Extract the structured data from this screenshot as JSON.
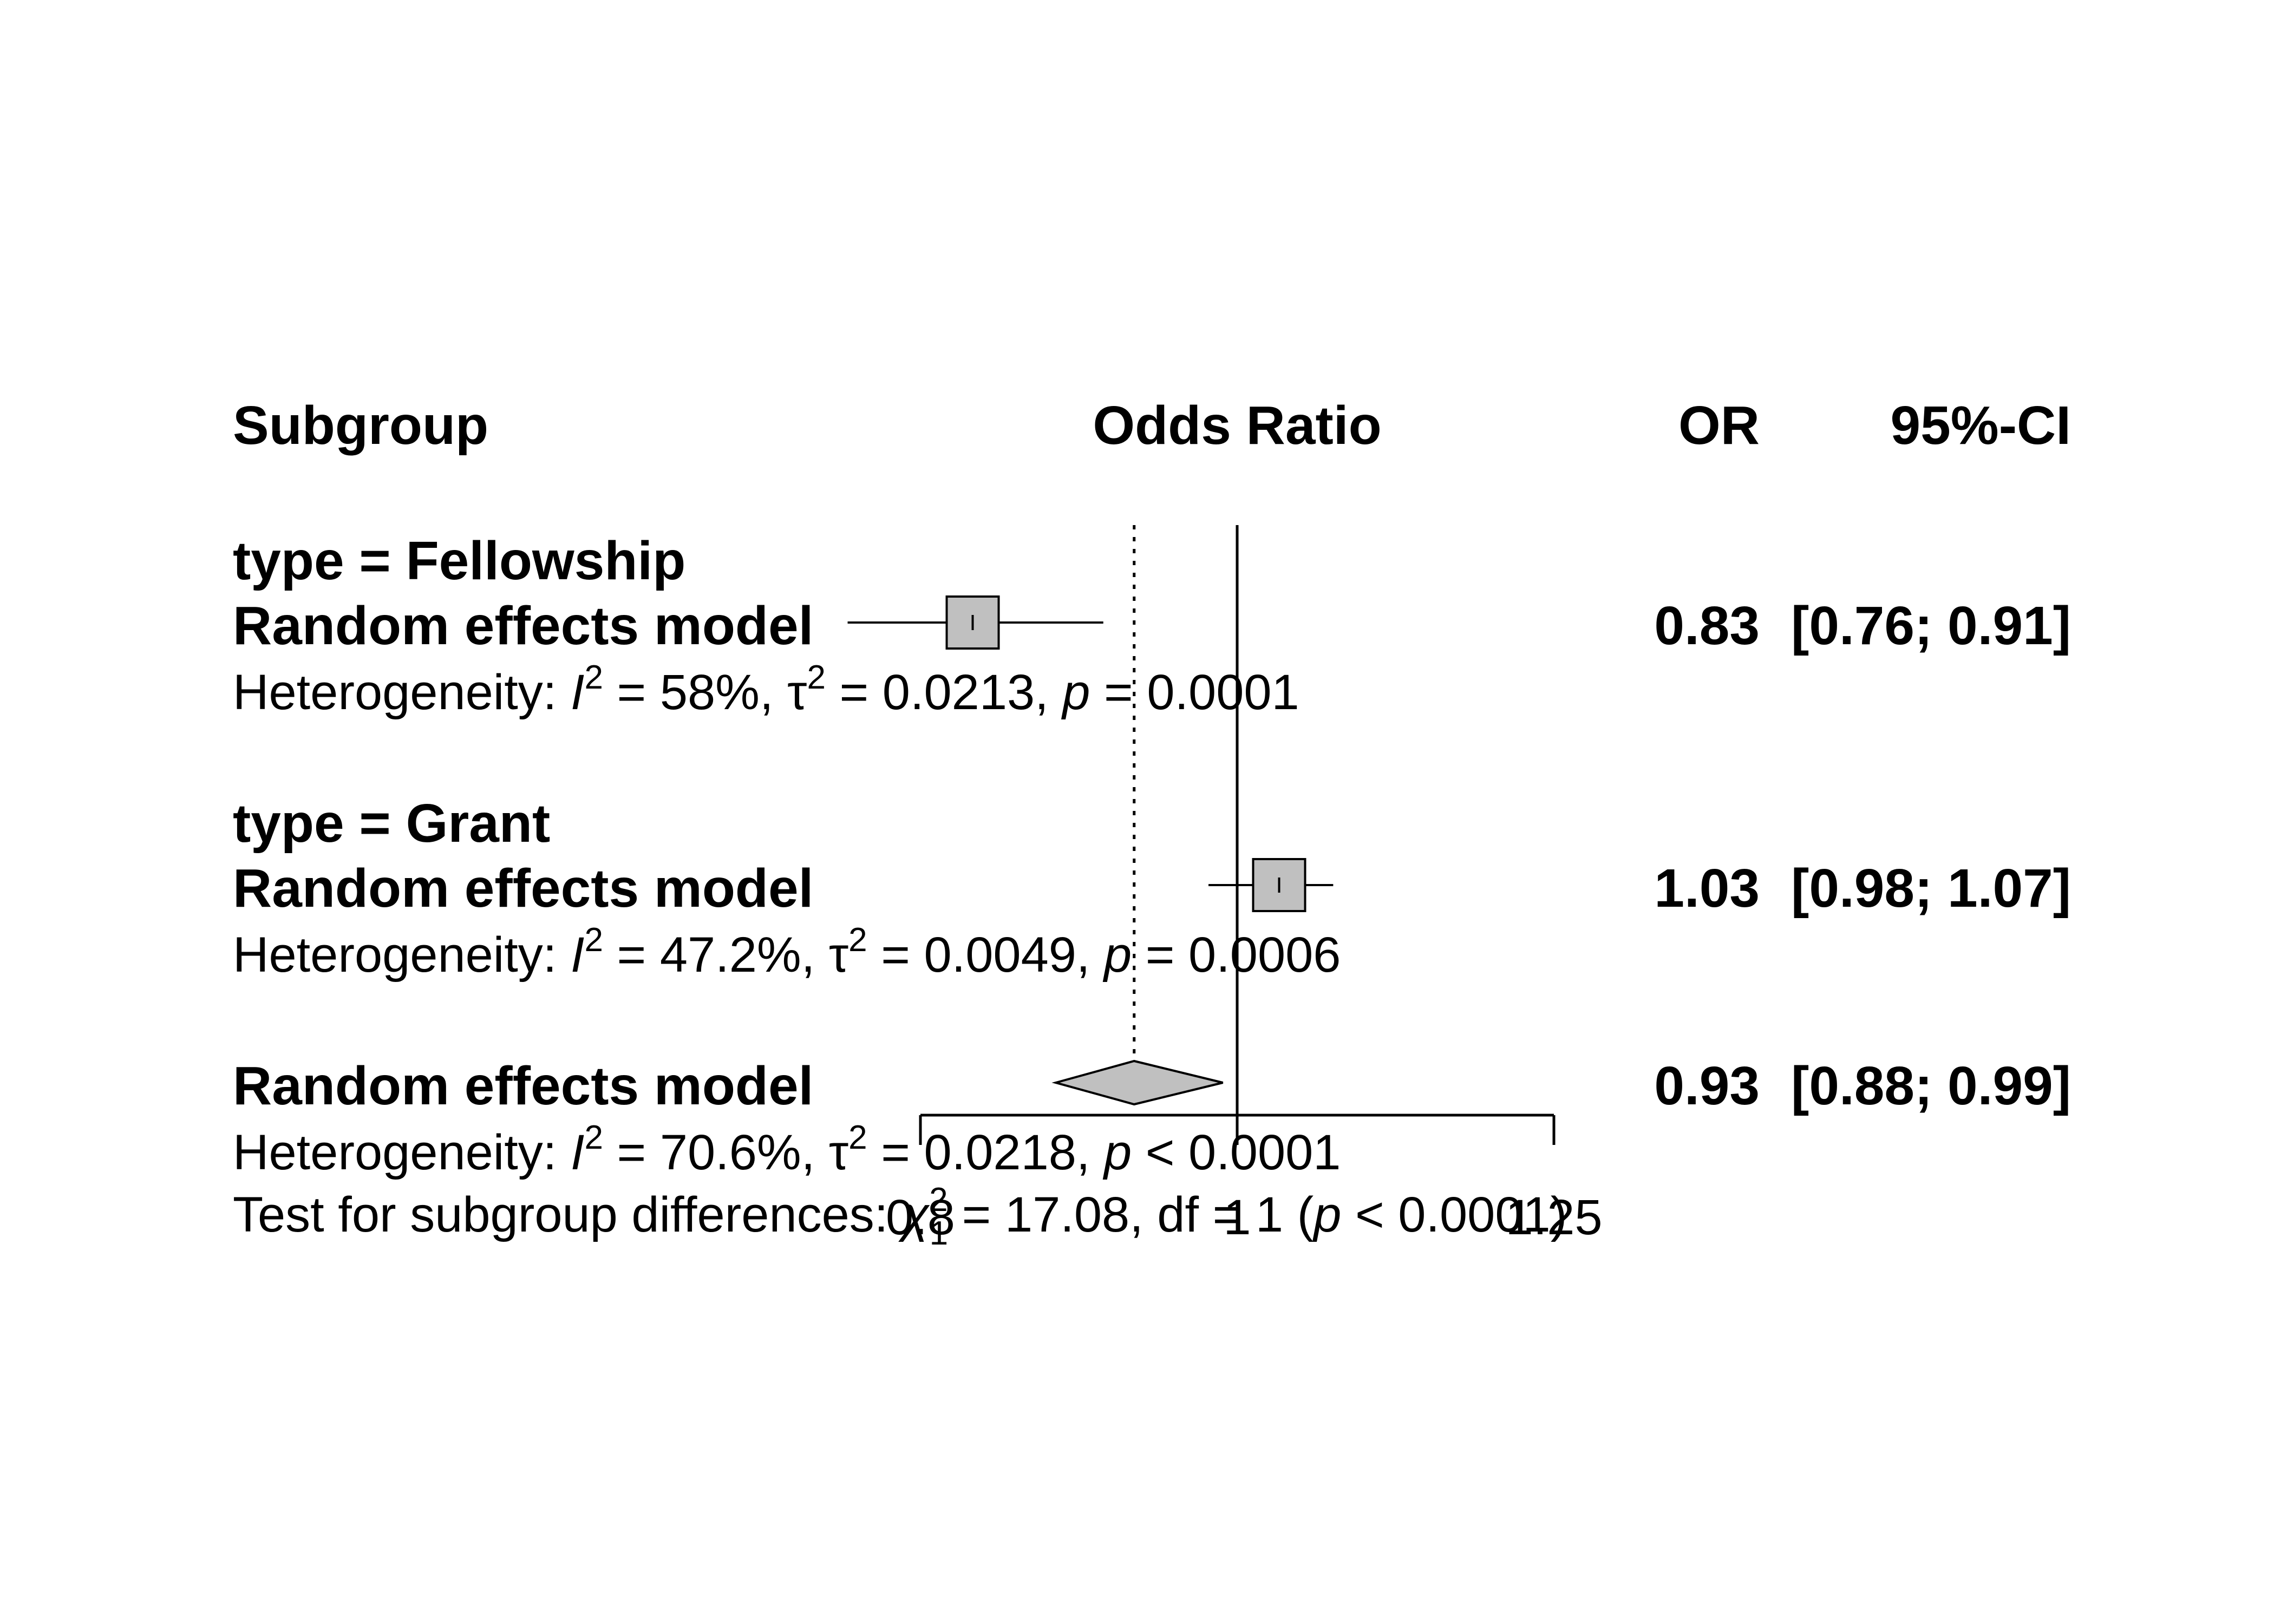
{
  "chart_data": {
    "type": "forest",
    "headers": {
      "subgroup": "Subgroup",
      "plot": "Odds Ratio",
      "effect": "OR",
      "ci": "95%-CI"
    },
    "scale": "log",
    "xlim": [
      0.8,
      1.25
    ],
    "ticks": [
      "0.8",
      "1",
      "1.25"
    ],
    "tick_values": [
      0.8,
      1,
      1.25
    ],
    "reference_line": 1,
    "pooled_line": 0.93,
    "subgroups": [
      {
        "title": "type = Fellowship",
        "model_label": "Random effects model",
        "or": 0.83,
        "ci_lower": 0.76,
        "ci_upper": 0.91,
        "or_text": "0.83",
        "ci_text": "[0.76; 0.91]",
        "het_prefix": "Heterogeneity: ",
        "i2": "58%",
        "tau2": "0.0213",
        "p_text": "= 0.0001"
      },
      {
        "title": "type = Grant",
        "model_label": "Random effects model",
        "or": 1.03,
        "ci_lower": 0.98,
        "ci_upper": 1.07,
        "or_text": "1.03",
        "ci_text": "[0.98; 1.07]",
        "het_prefix": "Heterogeneity: ",
        "i2": "47.2%",
        "tau2": "0.0049",
        "p_text": "= 0.0006"
      }
    ],
    "overall": {
      "model_label": "Random effects model",
      "or": 0.93,
      "ci_lower": 0.88,
      "ci_upper": 0.99,
      "or_text": "0.93",
      "ci_text": "[0.88; 0.99]",
      "het_prefix": "Heterogeneity: ",
      "i2": "70.6%",
      "tau2": "0.0218",
      "p_text": "< 0.0001"
    },
    "subgroup_test": {
      "prefix": "Test for subgroup differences: ",
      "chi_sub": "1",
      "stat": "17.08",
      "df": "1",
      "p_text": "< 0.0001"
    }
  },
  "colors": {
    "box": "#c0c0c0",
    "lines": "#000000"
  }
}
